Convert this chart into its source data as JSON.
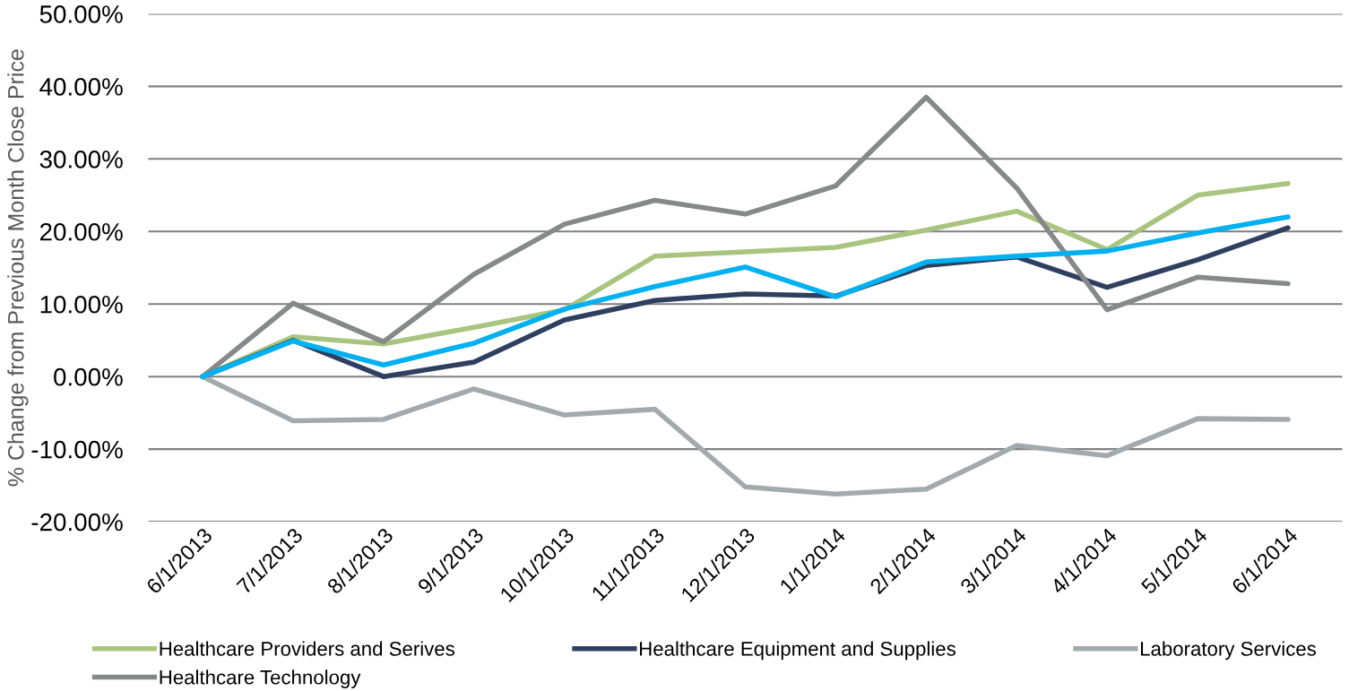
{
  "chart_data": {
    "type": "line",
    "ylabel": "% Change from Previous Month Close Price",
    "categories": [
      "6/1/2013",
      "7/1/2013",
      "8/1/2013",
      "9/1/2013",
      "10/1/2013",
      "11/1/2013",
      "12/1/2013",
      "1/1/2014",
      "2/1/2014",
      "3/1/2014",
      "4/1/2014",
      "5/1/2014",
      "6/1/2014"
    ],
    "series": [
      {
        "name": "Healthcare Providers and Serives",
        "color": "#a9c47f",
        "values": [
          0,
          5.5,
          4.5,
          6.8,
          9.2,
          16.6,
          17.2,
          17.8,
          20.2,
          22.8,
          17.5,
          25.0,
          26.6
        ]
      },
      {
        "name": "Healthcare Equipment and Supplies",
        "color": "#2e3f5f",
        "values": [
          0,
          5.0,
          0,
          2.0,
          7.8,
          10.5,
          11.4,
          11.1,
          15.3,
          16.5,
          12.3,
          16.1,
          20.5
        ]
      },
      {
        "name": "Laboratory Services",
        "color": "#a3aaae",
        "values": [
          0,
          -6.1,
          -5.9,
          -1.7,
          -5.3,
          -4.5,
          -15.2,
          -16.2,
          -15.5,
          -9.5,
          -10.9,
          -5.8,
          -5.9
        ]
      },
      {
        "name": "Healthcare Technology",
        "color": "#87888a",
        "values": [
          0,
          10.1,
          4.8,
          14.1,
          21.0,
          24.3,
          22.4,
          26.3,
          38.5,
          26.0,
          9.2,
          13.7,
          12.8
        ]
      },
      {
        "color": "#00b0f0",
        "values": [
          0,
          4.9,
          1.6,
          4.6,
          9.3,
          12.4,
          15.1,
          11.0,
          15.8,
          16.6,
          17.3,
          19.8,
          22.0
        ]
      }
    ],
    "ylim": [
      -20,
      50
    ],
    "yticks": [
      {
        "value": -20,
        "label": "-20.00%"
      },
      {
        "value": -10,
        "label": "-10.00%"
      },
      {
        "value": 0,
        "label": "0.00%"
      },
      {
        "value": 10,
        "label": "10.00%"
      },
      {
        "value": 20,
        "label": "20.00%"
      },
      {
        "value": 30,
        "label": "30.00%"
      },
      {
        "value": 40,
        "label": "40.00%"
      },
      {
        "value": 50,
        "label": "50.00%"
      }
    ],
    "grid": "y",
    "legend": "bottom",
    "marker": "none",
    "line_style": "solid"
  }
}
